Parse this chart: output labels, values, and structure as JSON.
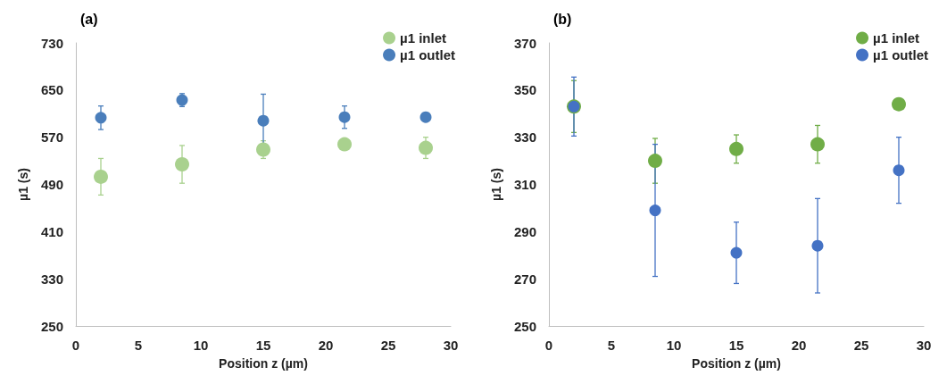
{
  "chart_data": [
    {
      "type": "scatter",
      "title": "(a)",
      "xlabel": "Position z (µm)",
      "ylabel": "µ1 (s)",
      "x": [
        2,
        8.5,
        15,
        21.5,
        28
      ],
      "xlim": [
        0,
        30
      ],
      "xticks": [
        0,
        5,
        10,
        15,
        20,
        25,
        30
      ],
      "ylim": [
        250,
        730
      ],
      "yticks": [
        250,
        330,
        410,
        490,
        570,
        650,
        730
      ],
      "grid": false,
      "legend": "top right",
      "marker": "circle",
      "series": [
        {
          "name": "µ1 inlet",
          "color": "#a9d18e",
          "values": [
            503,
            524,
            549,
            558,
            552
          ],
          "errors": [
            31,
            32,
            15,
            null,
            18
          ]
        },
        {
          "name": "µ1 outlet",
          "color": "#4a7ebb",
          "values": [
            603,
            633,
            598,
            604,
            604
          ],
          "errors": [
            20,
            11,
            45,
            19,
            null
          ]
        }
      ]
    },
    {
      "type": "scatter",
      "title": "(b)",
      "xlabel": "Position z (µm)",
      "ylabel": "µ1 (s)",
      "x": [
        2,
        8.5,
        15,
        21.5,
        28
      ],
      "xlim": [
        0,
        30
      ],
      "xticks": [
        0,
        5,
        10,
        15,
        20,
        25,
        30
      ],
      "ylim": [
        250,
        370
      ],
      "yticks": [
        250,
        270,
        290,
        310,
        330,
        350,
        370
      ],
      "grid": false,
      "legend": "top right",
      "marker": "circle",
      "series": [
        {
          "name": "µ1 inlet",
          "color": "#70ad47",
          "values": [
            343,
            320,
            325,
            327,
            344
          ],
          "errors": [
            11,
            9.5,
            6,
            8,
            null
          ]
        },
        {
          "name": "µ1 outlet",
          "color": "#4472c4",
          "values": [
            343,
            299,
            281,
            284,
            316
          ],
          "errors": [
            12.5,
            28,
            13,
            20,
            14
          ]
        }
      ]
    }
  ]
}
